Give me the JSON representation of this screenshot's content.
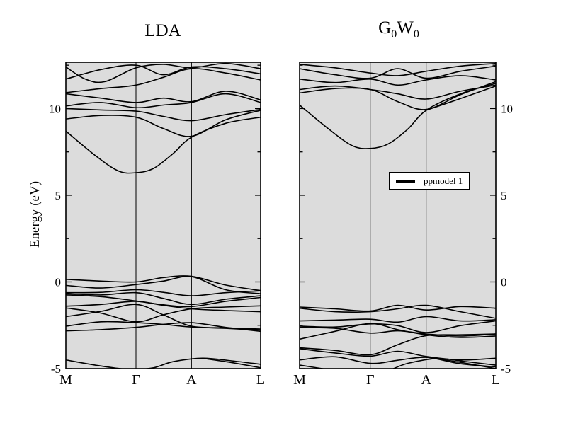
{
  "figure": {
    "y_axis_label": "Energy (eV)"
  },
  "chart_data": [
    {
      "type": "line",
      "panel_name": "lda-panel",
      "title": "LDA",
      "title_rich": [
        {
          "t": "LDA",
          "sub": false
        }
      ],
      "ylabel": "Energy (eV)",
      "k_labels": [
        "M",
        "Γ",
        "A",
        "L"
      ],
      "k_positions": [
        0,
        0.36,
        0.645,
        1.0
      ],
      "ylim": [
        -5,
        12.67
      ],
      "yticks": [
        -5,
        0,
        5,
        10
      ],
      "yticks_minor": [
        -2.5,
        2.5,
        7.5,
        12.5
      ],
      "tick_label_side": "left",
      "plot_bg": "#dcdcdc",
      "line_color": "#000000",
      "grid": "vertical-at-symmetry-points",
      "bands": [
        {
          "x": [
            0,
            0.18,
            0.36,
            0.5,
            0.645,
            0.82,
            1
          ],
          "y": [
            0.15,
            0.05,
            0.0,
            0.25,
            0.32,
            -0.18,
            -0.5
          ]
        },
        {
          "x": [
            0,
            0.18,
            0.36,
            0.5,
            0.645,
            0.82,
            1
          ],
          "y": [
            -0.2,
            -0.35,
            -0.15,
            0.05,
            0.3,
            -0.45,
            -0.68
          ]
        },
        {
          "x": [
            0,
            0.18,
            0.36,
            0.5,
            0.645,
            0.82,
            1
          ],
          "y": [
            -0.62,
            -0.6,
            -0.45,
            -0.6,
            -0.8,
            -0.62,
            -0.52
          ]
        },
        {
          "x": [
            0,
            0.18,
            0.36,
            0.5,
            0.645,
            0.82,
            1
          ],
          "y": [
            -0.68,
            -0.75,
            -0.62,
            -0.95,
            -1.3,
            -1.0,
            -0.8
          ]
        },
        {
          "x": [
            0,
            0.18,
            0.36,
            0.5,
            0.645,
            0.82,
            1
          ],
          "y": [
            -0.75,
            -0.85,
            -1.1,
            -1.32,
            -1.42,
            -1.12,
            -0.9
          ]
        },
        {
          "x": [
            0,
            0.18,
            0.36,
            0.5,
            0.645,
            0.82,
            1
          ],
          "y": [
            -1.4,
            -1.3,
            -1.12,
            -1.35,
            -1.55,
            -1.65,
            -1.72
          ]
        },
        {
          "x": [
            0,
            0.18,
            0.36,
            0.5,
            0.645,
            0.82,
            1
          ],
          "y": [
            -1.5,
            -1.8,
            -2.3,
            -1.9,
            -1.55,
            -1.45,
            -1.38
          ]
        },
        {
          "x": [
            0,
            0.18,
            0.36,
            0.5,
            0.645,
            0.82,
            1
          ],
          "y": [
            -2.0,
            -1.7,
            -1.3,
            -1.9,
            -2.55,
            -2.65,
            -2.72
          ]
        },
        {
          "x": [
            0,
            0.18,
            0.36,
            0.5,
            0.645,
            0.82,
            1
          ],
          "y": [
            -2.55,
            -2.3,
            -2.35,
            -2.45,
            -2.6,
            -2.68,
            -2.78
          ]
        },
        {
          "x": [
            0,
            0.18,
            0.36,
            0.5,
            0.645,
            0.82,
            1
          ],
          "y": [
            -2.82,
            -2.75,
            -2.62,
            -2.45,
            -2.35,
            -2.62,
            -2.85
          ]
        },
        {
          "x": [
            0,
            0.18,
            0.33,
            0.45,
            0.55,
            0.7,
            0.85,
            1
          ],
          "y": [
            -4.5,
            -4.85,
            -5.05,
            -4.95,
            -4.6,
            -4.4,
            -4.55,
            -4.75
          ]
        },
        {
          "x": [
            0.7,
            0.85,
            1
          ],
          "y": [
            -4.4,
            -4.65,
            -4.95
          ]
        },
        {
          "x": [
            0,
            0.15,
            0.27,
            0.36,
            0.45,
            0.55,
            0.645,
            0.82,
            1
          ],
          "y": [
            8.7,
            7.3,
            6.4,
            6.3,
            6.55,
            7.4,
            8.35,
            9.15,
            9.5
          ]
        },
        {
          "x": [
            0,
            0.18,
            0.36,
            0.5,
            0.645,
            0.82,
            1
          ],
          "y": [
            9.4,
            9.6,
            9.5,
            8.85,
            8.4,
            9.35,
            9.9
          ]
        },
        {
          "x": [
            0,
            0.18,
            0.36,
            0.5,
            0.645,
            0.82,
            1
          ],
          "y": [
            10.0,
            9.92,
            9.85,
            9.55,
            9.3,
            9.65,
            9.95
          ]
        },
        {
          "x": [
            0,
            0.18,
            0.36,
            0.5,
            0.645,
            0.82,
            1
          ],
          "y": [
            10.15,
            10.35,
            10.05,
            10.2,
            10.35,
            10.85,
            10.35
          ]
        },
        {
          "x": [
            0,
            0.18,
            0.36,
            0.5,
            0.645,
            0.82,
            1
          ],
          "y": [
            10.85,
            10.6,
            10.35,
            10.6,
            10.4,
            11.0,
            10.5
          ]
        },
        {
          "x": [
            0,
            0.18,
            0.36,
            0.5,
            0.645,
            0.82,
            1
          ],
          "y": [
            10.92,
            11.15,
            11.35,
            11.8,
            12.3,
            12.05,
            11.65
          ]
        },
        {
          "x": [
            0,
            0.18,
            0.36,
            0.5,
            0.645,
            0.82,
            1
          ],
          "y": [
            11.7,
            12.25,
            12.5,
            11.95,
            12.4,
            12.3,
            12.0
          ]
        },
        {
          "x": [
            0,
            0.1,
            0.2,
            0.36,
            0.5,
            0.645,
            0.82,
            1
          ],
          "y": [
            12.4,
            11.7,
            11.55,
            12.35,
            12.55,
            12.35,
            12.6,
            12.3
          ]
        }
      ]
    },
    {
      "type": "line",
      "panel_name": "g0w0-panel",
      "title": "G0W0",
      "title_rich": [
        {
          "t": "G",
          "sub": false
        },
        {
          "t": "0",
          "sub": true
        },
        {
          "t": "W",
          "sub": false
        },
        {
          "t": "0",
          "sub": true
        }
      ],
      "ylabel": "",
      "k_labels": [
        "M",
        "Γ",
        "A",
        "L"
      ],
      "k_positions": [
        0,
        0.36,
        0.645,
        1.0
      ],
      "ylim": [
        -5,
        12.67
      ],
      "yticks": [
        -5,
        0,
        5,
        10
      ],
      "yticks_minor": [
        -2.5,
        2.5,
        7.5,
        12.5
      ],
      "tick_label_side": "right",
      "plot_bg": "#dcdcdc",
      "line_color": "#000000",
      "grid": "vertical-at-symmetry-points",
      "legend": {
        "label": "ppmodel 1"
      },
      "bands": [
        {
          "x": [
            0,
            0.18,
            0.36,
            0.5,
            0.645,
            0.82,
            1
          ],
          "y": [
            -1.45,
            -1.55,
            -1.68,
            -1.35,
            -1.62,
            -1.42,
            -1.52
          ]
        },
        {
          "x": [
            0,
            0.18,
            0.36,
            0.5,
            0.645,
            0.82,
            1
          ],
          "y": [
            -1.52,
            -1.72,
            -1.72,
            -1.55,
            -1.35,
            -1.72,
            -2.1
          ]
        },
        {
          "x": [
            0,
            0.18,
            0.36,
            0.5,
            0.645,
            0.82,
            1
          ],
          "y": [
            -2.25,
            -2.2,
            -2.15,
            -2.32,
            -2.0,
            -2.25,
            -2.18
          ]
        },
        {
          "x": [
            0,
            0.18,
            0.36,
            0.5,
            0.645,
            0.82,
            1
          ],
          "y": [
            -2.55,
            -2.6,
            -2.42,
            -2.52,
            -2.92,
            -2.52,
            -2.25
          ]
        },
        {
          "x": [
            0,
            0.18,
            0.36,
            0.5,
            0.645,
            0.82,
            1
          ],
          "y": [
            -2.62,
            -2.68,
            -2.95,
            -2.82,
            -3.0,
            -3.12,
            -3.0
          ]
        },
        {
          "x": [
            0,
            0.18,
            0.36,
            0.5,
            0.645,
            0.82,
            1
          ],
          "y": [
            -3.3,
            -2.85,
            -2.4,
            -2.75,
            -3.05,
            -3.2,
            -3.12
          ]
        },
        {
          "x": [
            0,
            0.18,
            0.36,
            0.5,
            0.645,
            0.82,
            1
          ],
          "y": [
            -3.8,
            -3.95,
            -4.2,
            -3.62,
            -3.1,
            -3.05,
            -3.0
          ]
        },
        {
          "x": [
            0,
            0.18,
            0.36,
            0.5,
            0.645,
            0.82,
            1
          ],
          "y": [
            -3.85,
            -4.1,
            -4.28,
            -4.0,
            -4.3,
            -4.5,
            -4.4
          ]
        },
        {
          "x": [
            0,
            0.18,
            0.36,
            0.5,
            0.645,
            0.82,
            1
          ],
          "y": [
            -4.5,
            -4.32,
            -4.7,
            -4.52,
            -4.35,
            -4.72,
            -4.9
          ]
        },
        {
          "x": [
            0,
            0.18,
            0.33,
            0.45,
            0.55,
            0.7,
            0.85,
            1
          ],
          "y": [
            -4.8,
            -5.1,
            -5.25,
            -5.1,
            -4.7,
            -4.42,
            -4.6,
            -4.8
          ]
        },
        {
          "x": [
            0.7,
            0.85,
            1
          ],
          "y": [
            -4.42,
            -4.7,
            -5.0
          ]
        },
        {
          "x": [
            0,
            0.15,
            0.27,
            0.36,
            0.45,
            0.55,
            0.645,
            0.82,
            1
          ],
          "y": [
            10.2,
            8.8,
            7.85,
            7.7,
            7.95,
            8.8,
            9.9,
            10.85,
            11.45
          ]
        },
        {
          "x": [
            0.645,
            0.8,
            1
          ],
          "y": [
            9.9,
            10.5,
            11.3
          ]
        },
        {
          "x": [
            0,
            0.18,
            0.36,
            0.5,
            0.645,
            0.82,
            1
          ],
          "y": [
            10.9,
            11.15,
            11.1,
            10.4,
            9.95,
            10.8,
            11.55
          ]
        },
        {
          "x": [
            0,
            0.18,
            0.36,
            0.5,
            0.645,
            0.82,
            1
          ],
          "y": [
            11.1,
            11.3,
            11.1,
            10.85,
            10.55,
            11.0,
            11.35
          ]
        },
        {
          "x": [
            0,
            0.18,
            0.36,
            0.5,
            0.645,
            0.82,
            1
          ],
          "y": [
            11.7,
            11.5,
            11.7,
            11.35,
            11.65,
            11.9,
            11.65
          ]
        },
        {
          "x": [
            0,
            0.18,
            0.36,
            0.5,
            0.645,
            0.82,
            1
          ],
          "y": [
            12.3,
            11.95,
            11.75,
            12.3,
            11.75,
            12.15,
            12.45
          ]
        },
        {
          "x": [
            0,
            0.18,
            0.36,
            0.5,
            0.645,
            0.82,
            1
          ],
          "y": [
            12.55,
            12.35,
            12.05,
            11.9,
            12.15,
            12.45,
            12.6
          ]
        }
      ]
    }
  ]
}
